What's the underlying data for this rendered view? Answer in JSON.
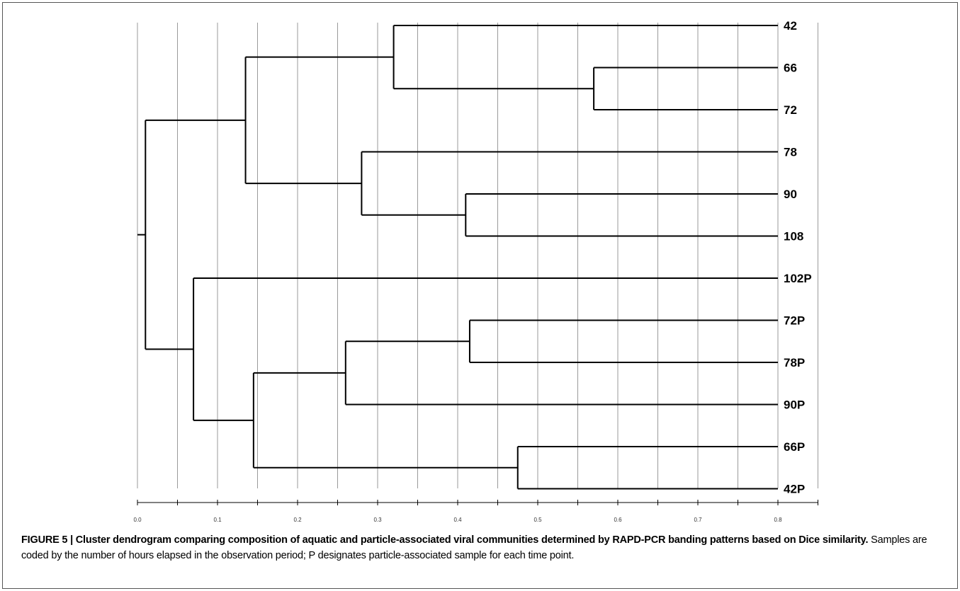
{
  "chart_data": {
    "type": "dendrogram",
    "title": "",
    "xlabel": "",
    "ylabel": "",
    "xlim": [
      0,
      0.85
    ],
    "x_ticks": [
      "0.0",
      "0.1",
      "0.2",
      "0.3",
      "0.4",
      "0.5",
      "0.6",
      "0.7",
      "0.8"
    ],
    "x_minor_step": 0.05,
    "grid": true,
    "leaves": [
      "42",
      "66",
      "72",
      "78",
      "90",
      "108",
      "102P",
      "72P",
      "78P",
      "90P",
      "66P",
      "42P"
    ],
    "merges": [
      {
        "id": "n1",
        "children": [
          "66",
          "72"
        ],
        "height": 0.57
      },
      {
        "id": "n2",
        "children": [
          "42",
          "n1"
        ],
        "height": 0.32
      },
      {
        "id": "n3",
        "children": [
          "90",
          "108"
        ],
        "height": 0.41
      },
      {
        "id": "n4",
        "children": [
          "78",
          "n3"
        ],
        "height": 0.28
      },
      {
        "id": "n5",
        "children": [
          "n2",
          "n4"
        ],
        "height": 0.135
      },
      {
        "id": "n6",
        "children": [
          "72P",
          "78P"
        ],
        "height": 0.415
      },
      {
        "id": "n7",
        "children": [
          "n6",
          "90P"
        ],
        "height": 0.26
      },
      {
        "id": "n8",
        "children": [
          "66P",
          "42P"
        ],
        "height": 0.475
      },
      {
        "id": "n9",
        "children": [
          "n7",
          "n8"
        ],
        "height": 0.145
      },
      {
        "id": "n10",
        "children": [
          "102P",
          "n9"
        ],
        "height": 0.07
      },
      {
        "id": "n11",
        "children": [
          "n5",
          "n10"
        ],
        "height": 0.01
      }
    ],
    "leaf_height": 0.8
  },
  "caption": {
    "lead": "FIGURE 5 | Cluster dendrogram comparing composition of aquatic and particle-associated viral communities determined by RAPD-PCR banding patterns based on Dice similarity.",
    "body": " Samples are coded by the number of hours elapsed in the observation period; P designates particle-associated sample for each time point."
  },
  "colors": {
    "line": "#000000",
    "grid": "#9a9a9a",
    "border": "#555555"
  }
}
